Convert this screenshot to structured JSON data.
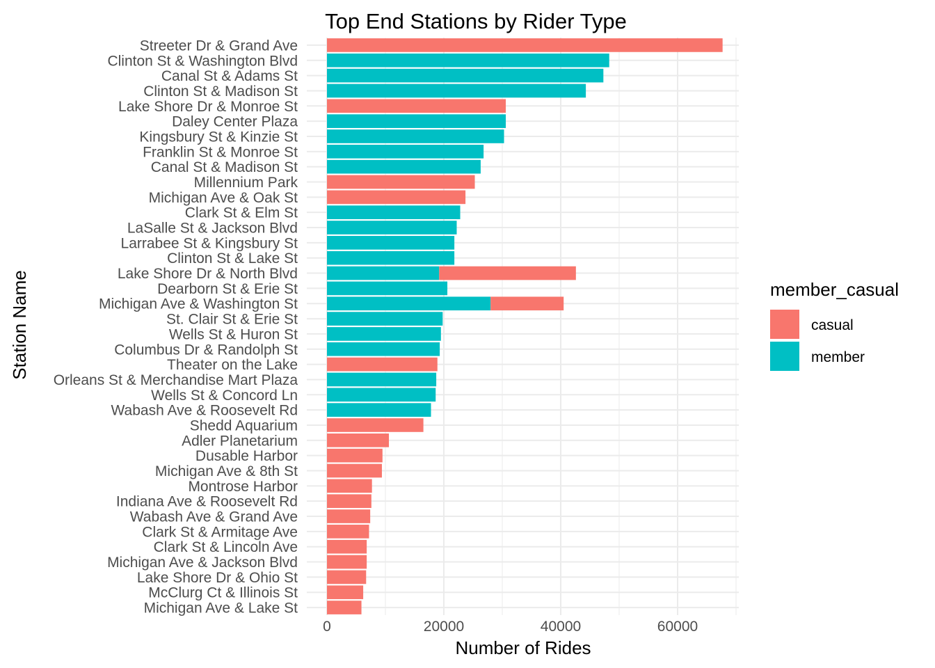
{
  "chart_data": {
    "type": "bar",
    "orientation": "horizontal",
    "stacked": true,
    "title": "Top End Stations by Rider Type",
    "xlabel": "Number of Rides",
    "ylabel": "Station Name",
    "xlim": [
      0,
      70000
    ],
    "xticks": [
      0,
      20000,
      40000,
      60000
    ],
    "grid": true,
    "legend_position": "right",
    "legend_title": "member_casual",
    "categories": [
      "Streeter Dr & Grand Ave",
      "Clinton St & Washington Blvd",
      "Canal St & Adams St",
      "Clinton St & Madison St",
      "Lake Shore Dr & Monroe St",
      "Daley Center Plaza",
      "Kingsbury St & Kinzie St",
      "Franklin St & Monroe St",
      "Canal St & Madison St",
      "Millennium Park",
      "Michigan Ave & Oak St",
      "Clark St & Elm St",
      "LaSalle St & Jackson Blvd",
      "Larrabee St & Kingsbury St",
      "Clinton St & Lake St",
      "Lake Shore Dr & North Blvd",
      "Dearborn St & Erie St",
      "Michigan Ave & Washington St",
      "St. Clair St & Erie St",
      "Wells St & Huron St",
      "Columbus Dr & Randolph St",
      "Theater on the Lake",
      "Orleans St & Merchandise Mart Plaza",
      "Wells St & Concord Ln",
      "Wabash Ave & Roosevelt Rd",
      "Shedd Aquarium",
      "Adler Planetarium",
      "Dusable Harbor",
      "Michigan Ave & 8th St",
      "Montrose Harbor",
      "Indiana Ave & Roosevelt Rd",
      "Wabash Ave & Grand Ave",
      "Clark St & Armitage Ave",
      "Clark St & Lincoln Ave",
      "Michigan Ave & Jackson Blvd",
      "Lake Shore Dr & Ohio St",
      "McClurg Ct & Illinois St",
      "Michigan Ave & Lake St"
    ],
    "series": [
      {
        "name": "member",
        "color": "#00BFC4",
        "values": [
          0,
          48300,
          47300,
          44300,
          0,
          30600,
          30300,
          26800,
          26300,
          0,
          0,
          22800,
          22200,
          21800,
          21800,
          19200,
          20600,
          28000,
          19800,
          19500,
          19300,
          0,
          18700,
          18600,
          17800,
          0,
          0,
          0,
          0,
          0,
          0,
          0,
          0,
          0,
          0,
          0,
          0,
          0
        ]
      },
      {
        "name": "casual",
        "color": "#F8766D",
        "values": [
          67700,
          0,
          0,
          0,
          30600,
          0,
          0,
          0,
          0,
          25300,
          23700,
          0,
          0,
          0,
          0,
          23400,
          0,
          12500,
          0,
          0,
          0,
          18900,
          0,
          0,
          0,
          16500,
          10600,
          9500,
          9400,
          7700,
          7600,
          7400,
          7200,
          6800,
          6800,
          6700,
          6200,
          5900
        ]
      }
    ],
    "legend_order": [
      "casual",
      "member"
    ]
  }
}
